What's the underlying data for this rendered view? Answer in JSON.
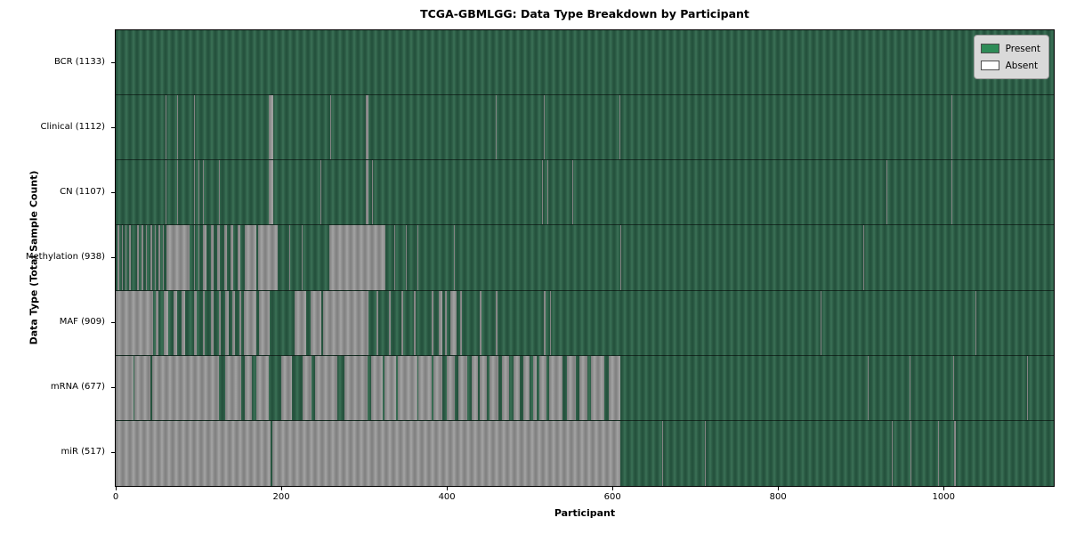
{
  "chart_data": {
    "type": "heatmap",
    "title": "TCGA-GBMLGG: Data Type Breakdown by Participant",
    "xlabel": "Participant",
    "ylabel": "Data Type (Total Sample Count)",
    "x_range": [
      0,
      1133
    ],
    "x_ticks": [
      0,
      200,
      400,
      600,
      800,
      1000
    ],
    "grid": false,
    "legend_position": "upper right",
    "legend": [
      {
        "label": "Present",
        "color": "#2e8b57"
      },
      {
        "label": "Absent",
        "color": "#ffffff"
      }
    ],
    "colors": {
      "present": "#2e8b57",
      "absent": "#ffffff",
      "present_render_dark": "#23503c",
      "present_render_light": "#3b7157",
      "absent_render_dark": "#7f7f7f",
      "absent_render_light": "#a4a4a4",
      "frame": "#000000",
      "legend_bg": "#d9d9d9"
    },
    "rows": [
      {
        "id": "bcr",
        "label": "BCR (1133)",
        "total": 1133,
        "absent_segments": []
      },
      {
        "id": "clinical",
        "label": "Clinical (1112)",
        "total": 1112,
        "absent_segments": [
          [
            60,
            61
          ],
          [
            74,
            75
          ],
          [
            95,
            96
          ],
          [
            185,
            190
          ],
          [
            259,
            260
          ],
          [
            302,
            305
          ],
          [
            422,
            423
          ],
          [
            459,
            460
          ],
          [
            517,
            518
          ],
          [
            608,
            610
          ],
          [
            1009,
            1010
          ]
        ]
      },
      {
        "id": "cn",
        "label": "CN (1107)",
        "total": 1107,
        "absent_segments": [
          [
            60,
            61
          ],
          [
            74,
            75
          ],
          [
            95,
            96
          ],
          [
            100,
            101
          ],
          [
            105,
            106
          ],
          [
            125,
            126
          ],
          [
            185,
            190
          ],
          [
            193,
            194
          ],
          [
            247,
            248
          ],
          [
            302,
            305
          ],
          [
            310,
            311
          ],
          [
            422,
            423
          ],
          [
            515,
            516
          ],
          [
            521,
            522
          ],
          [
            551,
            552
          ],
          [
            931,
            932
          ],
          [
            1009,
            1010
          ]
        ]
      },
      {
        "id": "methylation",
        "label": "Methylation (938)",
        "total": 938,
        "absent_segments": [
          [
            2,
            4
          ],
          [
            7,
            9
          ],
          [
            12,
            13
          ],
          [
            16,
            18
          ],
          [
            21,
            22
          ],
          [
            26,
            28
          ],
          [
            31,
            33
          ],
          [
            37,
            38
          ],
          [
            42,
            44
          ],
          [
            47,
            48
          ],
          [
            52,
            54
          ],
          [
            57,
            58
          ],
          [
            61,
            89
          ],
          [
            95,
            96
          ],
          [
            100,
            101
          ],
          [
            105,
            110
          ],
          [
            115,
            118
          ],
          [
            123,
            126
          ],
          [
            131,
            134
          ],
          [
            139,
            142
          ],
          [
            147,
            150
          ],
          [
            156,
            170
          ],
          [
            172,
            196
          ],
          [
            210,
            211
          ],
          [
            225,
            226
          ],
          [
            258,
            326
          ],
          [
            336,
            338
          ],
          [
            350,
            352
          ],
          [
            364,
            365
          ],
          [
            409,
            410
          ],
          [
            609,
            611
          ],
          [
            903,
            904
          ]
        ]
      },
      {
        "id": "maf",
        "label": "MAF (909)",
        "total": 909,
        "absent_segments": [
          [
            0,
            45
          ],
          [
            48,
            52
          ],
          [
            58,
            63
          ],
          [
            70,
            74
          ],
          [
            80,
            84
          ],
          [
            95,
            98
          ],
          [
            105,
            108
          ],
          [
            115,
            118
          ],
          [
            125,
            127
          ],
          [
            132,
            136
          ],
          [
            141,
            144
          ],
          [
            149,
            152
          ],
          [
            155,
            170
          ],
          [
            173,
            186
          ],
          [
            216,
            230
          ],
          [
            235,
            248
          ],
          [
            250,
            305
          ],
          [
            315,
            317
          ],
          [
            330,
            332
          ],
          [
            345,
            347
          ],
          [
            360,
            362
          ],
          [
            382,
            384
          ],
          [
            390,
            394
          ],
          [
            398,
            400
          ],
          [
            404,
            412
          ],
          [
            416,
            418
          ],
          [
            440,
            442
          ],
          [
            459,
            461
          ],
          [
            517,
            519
          ],
          [
            525,
            526
          ],
          [
            752,
            753
          ],
          [
            851,
            852
          ],
          [
            1038,
            1039
          ]
        ]
      },
      {
        "id": "mrna",
        "label": "mRNA (677)",
        "total": 677,
        "absent_segments": [
          [
            0,
            21
          ],
          [
            23,
            42
          ],
          [
            44,
            125
          ],
          [
            132,
            152
          ],
          [
            156,
            164
          ],
          [
            170,
            185
          ],
          [
            200,
            213
          ],
          [
            226,
            236
          ],
          [
            241,
            268
          ],
          [
            276,
            304
          ],
          [
            308,
            323
          ],
          [
            325,
            339
          ],
          [
            341,
            364
          ],
          [
            366,
            382
          ],
          [
            384,
            395
          ],
          [
            400,
            410
          ],
          [
            414,
            425
          ],
          [
            430,
            437
          ],
          [
            440,
            448
          ],
          [
            452,
            462
          ],
          [
            466,
            475
          ],
          [
            480,
            488
          ],
          [
            492,
            500
          ],
          [
            504,
            508
          ],
          [
            512,
            520
          ],
          [
            524,
            540
          ],
          [
            545,
            556
          ],
          [
            560,
            570
          ],
          [
            574,
            590
          ],
          [
            596,
            610
          ],
          [
            681,
            682
          ],
          [
            908,
            909
          ],
          [
            959,
            960
          ],
          [
            1012,
            1013
          ],
          [
            1101,
            1102
          ]
        ]
      },
      {
        "id": "mir",
        "label": "miR (517)",
        "total": 517,
        "absent_segments": [
          [
            0,
            187
          ],
          [
            189,
            610
          ],
          [
            660,
            661
          ],
          [
            712,
            713
          ],
          [
            937,
            938
          ],
          [
            960,
            961
          ],
          [
            993,
            994
          ],
          [
            1013,
            1015
          ]
        ]
      }
    ]
  }
}
